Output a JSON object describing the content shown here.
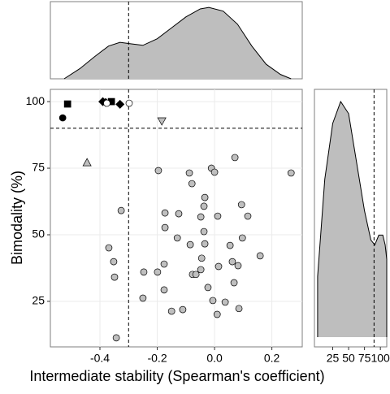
{
  "chart_data": [
    {
      "type": "scatter",
      "x_label": "Intermediate stability (Spearman's coefficient)",
      "y_label": "Bimodality (%)",
      "xlim": [
        -0.573,
        0.306
      ],
      "ylim": [
        7.9,
        104.6
      ],
      "xticks": [
        -0.4,
        -0.2,
        {
          "value": 0,
          "label": "0.0"
        },
        0.2
      ],
      "yticks": [
        25,
        50,
        75,
        100
      ],
      "grid": true,
      "vline": -0.3,
      "hline": 90,
      "series": [
        {
          "shape": "circle",
          "color": "#bfbfbf",
          "x": [
            -0.196,
            -0.088,
            -0.011,
            0.071,
            0.267,
            -0.079,
            0,
            -0.034,
            -0.326,
            -0.037,
            0.094,
            0.116,
            -0.173,
            -0.125,
            -0.048,
            0.011,
            -0.173,
            -0.037,
            -0.13,
            0.097,
            -0.085,
            -0.034,
            -0.369,
            0.054,
            0.159,
            -0.352,
            -0.176,
            -0.045,
            0.062,
            0.014,
            0.082,
            -0.247,
            -0.199,
            -0.048,
            -0.077,
            -0.065,
            -0.349,
            0.068,
            -0.176,
            -0.023,
            -0.25,
            -0.006,
            0.037,
            0.085,
            -0.111,
            -0.15,
            0.009,
            -0.343
          ],
          "values": [
            74.1,
            73.2,
            75,
            79,
            73.2,
            69.2,
            73.5,
            64,
            59.1,
            60.7,
            61.3,
            57,
            58.2,
            57.9,
            56.7,
            57,
            52.7,
            51.2,
            48.8,
            48.8,
            46.3,
            46.6,
            45.1,
            46,
            42.1,
            39.9,
            39,
            41.2,
            39.9,
            38.1,
            38.4,
            36,
            36,
            36.9,
            35.1,
            35.1,
            34.1,
            32,
            29.3,
            30.2,
            26.2,
            25.3,
            24.7,
            22.3,
            21.9,
            21.3,
            20.1,
            11.3
          ]
        },
        {
          "shape": "square",
          "color": "#000000",
          "x": [
            -0.513,
            -0.36
          ],
          "values": [
            99.1,
            100
          ]
        },
        {
          "shape": "circle",
          "color": "#000000",
          "x": [
            -0.53
          ],
          "values": [
            93.9
          ]
        },
        {
          "shape": "diamond",
          "color": "#000000",
          "x": [
            -0.39,
            -0.38,
            -0.33
          ],
          "values": [
            100,
            99.7,
            99
          ]
        },
        {
          "shape": "circle",
          "color": "#ffffff",
          "x": [
            -0.376,
            -0.298
          ],
          "values": [
            99.4,
            99.4
          ]
        },
        {
          "shape": "triangle-down",
          "color": "#bfbfbf",
          "x": [
            -0.184
          ],
          "values": [
            92.7
          ]
        },
        {
          "shape": "triangle",
          "color": "#bfbfbf",
          "x": [
            -0.445
          ],
          "values": [
            77.1
          ]
        }
      ]
    },
    {
      "type": "density",
      "color": "#bebebe",
      "xlim": [
        -0.573,
        0.306
      ],
      "ylim": [
        0,
        1.06
      ],
      "vline": -0.3,
      "x": [
        -0.525,
        -0.47,
        -0.42,
        -0.37,
        -0.33,
        -0.29,
        -0.25,
        -0.2,
        -0.15,
        -0.1,
        -0.05,
        -0.02,
        0.03,
        0.08,
        0.13,
        0.18,
        0.23,
        0.267
      ],
      "values": [
        0,
        0.14,
        0.3,
        0.45,
        0.5,
        0.48,
        0.46,
        0.55,
        0.7,
        0.85,
        0.96,
        0.98,
        0.93,
        0.75,
        0.45,
        0.2,
        0.06,
        0
      ]
    },
    {
      "type": "density",
      "color": "#bebebe",
      "xlim": [
        -3.75,
        110
      ],
      "ylim": [
        -0.04,
        1.02
      ],
      "vline": 90,
      "xticks": [
        25,
        50,
        75,
        100
      ],
      "x": [
        1.25,
        12.5,
        25,
        37.5,
        50,
        62.5,
        75,
        85,
        91.25,
        97.5,
        103.75,
        107.5,
        110
      ],
      "values": [
        0.25,
        0.65,
        0.88,
        0.97,
        0.92,
        0.72,
        0.52,
        0.4,
        0.38,
        0.42,
        0.42,
        0.38,
        0.32
      ]
    }
  ]
}
